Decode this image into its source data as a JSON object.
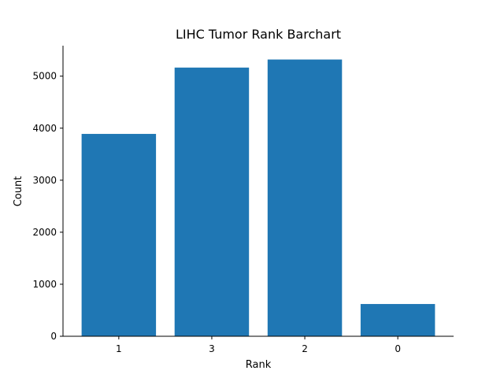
{
  "chart_data": {
    "type": "bar",
    "title": "LIHC Tumor Rank Barchart",
    "xlabel": "Rank",
    "ylabel": "Count",
    "categories": [
      "1",
      "3",
      "2",
      "0"
    ],
    "values": [
      3890,
      5165,
      5320,
      620
    ],
    "ylim": [
      0,
      5586
    ],
    "yticks": [
      0,
      1000,
      2000,
      3000,
      4000,
      5000
    ],
    "grid": false,
    "bar_color": "#1f77b4"
  }
}
